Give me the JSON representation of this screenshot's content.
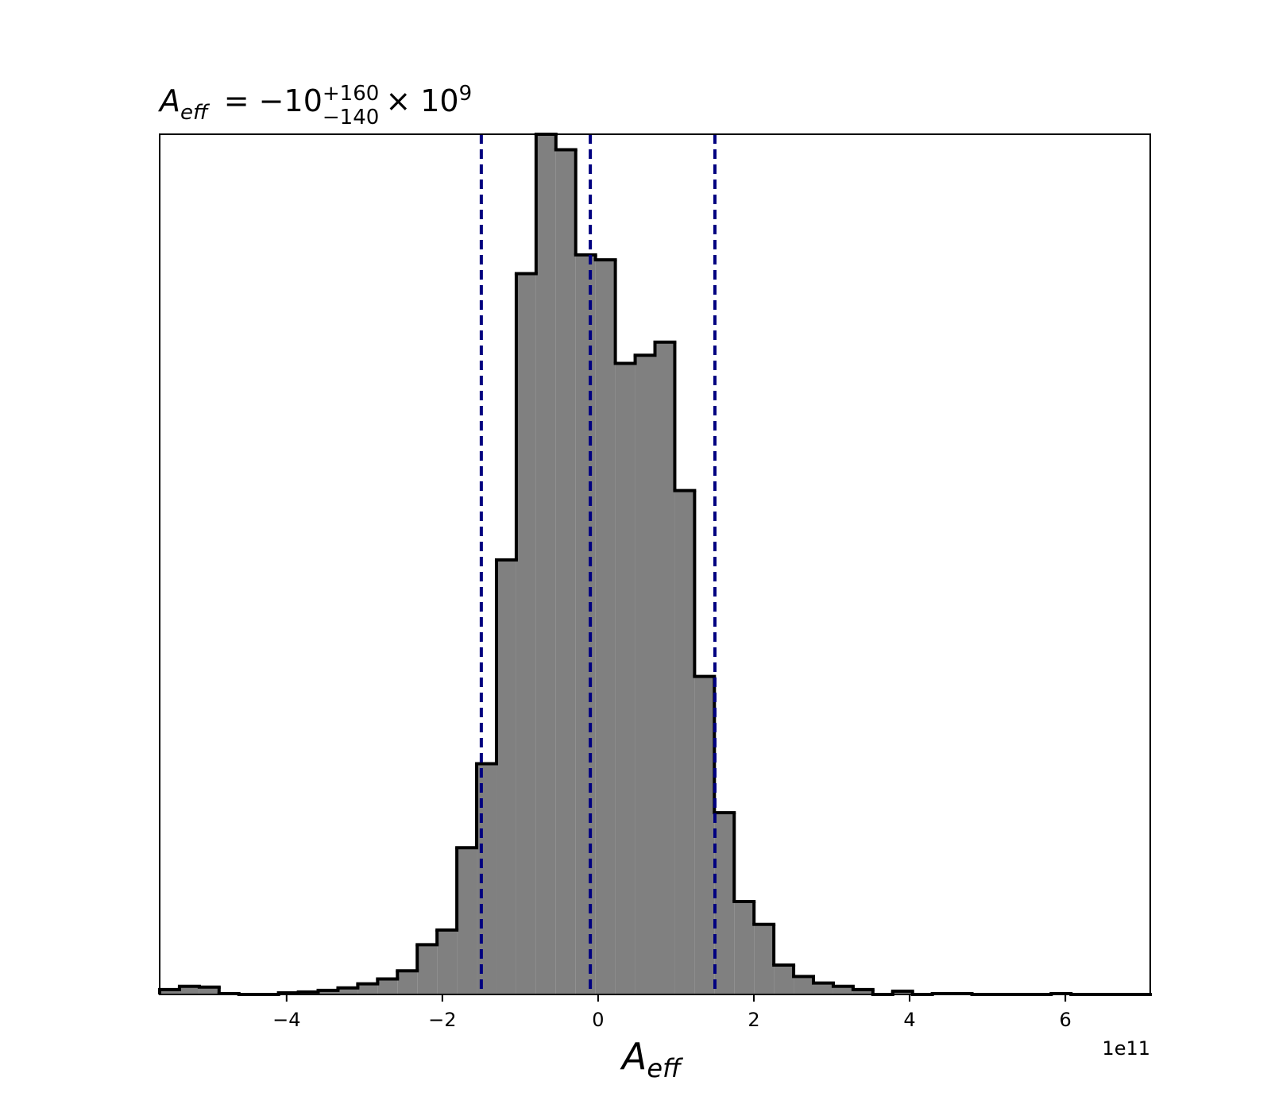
{
  "chart_data": {
    "type": "histogram",
    "title": {
      "symbol": "A",
      "symbol_sub": "eff",
      "value": "= −10",
      "upper": "+160",
      "lower": "−140",
      "times": "× 10",
      "exponent": "9"
    },
    "xlabel": {
      "symbol": "A",
      "sub": "eff"
    },
    "x_offset_label": "1e11",
    "bins": [
      -5.63,
      -5.3756,
      -5.1212,
      -4.8668,
      -4.6124,
      -4.358,
      -4.1036,
      -3.8492,
      -3.5948,
      -3.3404,
      -3.086,
      -2.8316,
      -2.5772,
      -2.3228,
      -2.0684,
      -1.814,
      -1.5596,
      -1.3052,
      -1.0508,
      -0.7964,
      -0.542,
      -0.2876,
      -0.0332,
      0.2212,
      0.4756,
      0.73,
      0.9844,
      1.2388,
      1.4932,
      1.7476,
      2.002,
      2.2564,
      2.5108,
      2.7652,
      3.0196,
      3.274,
      3.5284,
      3.7828,
      4.0372,
      4.2916,
      4.546,
      4.8004,
      5.0548,
      5.3092,
      5.5636,
      5.818,
      6.0724,
      6.3268,
      6.5812,
      6.8356,
      7.09
    ],
    "values": [
      6,
      10,
      9,
      1,
      0,
      0,
      2,
      3,
      5,
      8,
      13,
      19,
      29,
      61,
      79,
      180,
      283,
      533,
      884,
      1055,
      1036,
      907,
      901,
      774,
      784,
      800,
      618,
      390,
      223,
      114,
      86,
      36,
      22,
      14,
      10,
      6,
      0,
      4,
      0,
      1,
      1,
      0,
      0,
      0,
      0,
      1,
      0,
      0,
      0,
      0
    ],
    "color": "#808080",
    "edge_color": "#000000",
    "markers": [
      -1.5,
      -0.1,
      1.5
    ],
    "marker_color": "#000080",
    "xlim": [
      -5.63,
      7.09
    ],
    "ylim": [
      0,
      1055
    ],
    "xticks": [
      {
        "value": -4,
        "label": "−4"
      },
      {
        "value": -2,
        "label": "−2"
      },
      0,
      2,
      4,
      6
    ]
  }
}
